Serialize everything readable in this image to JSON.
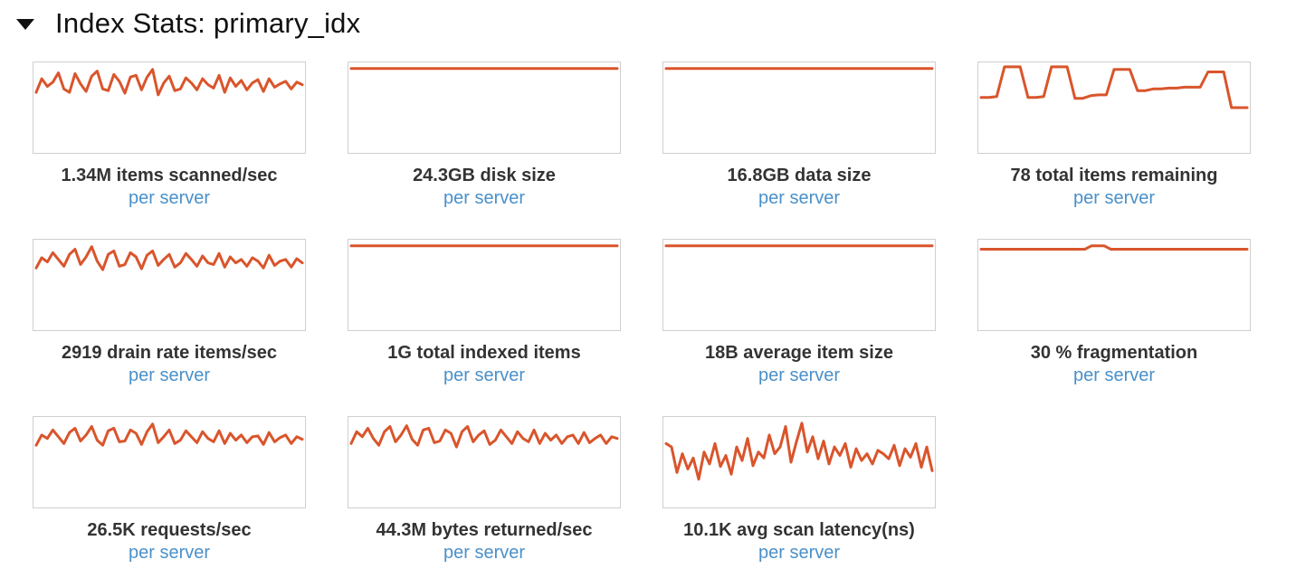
{
  "section": {
    "title": "Index Stats: primary_idx",
    "caret_icon": "caret-down-icon"
  },
  "accent_color": "#d9552c",
  "link_color": "#4a90c9",
  "tiles": [
    {
      "label": "1.34M items scanned/sec",
      "link": "per server",
      "series": [
        0.68,
        0.84,
        0.75,
        0.8,
        0.91,
        0.72,
        0.68,
        0.9,
        0.78,
        0.69,
        0.87,
        0.93,
        0.72,
        0.7,
        0.89,
        0.81,
        0.67,
        0.86,
        0.88,
        0.71,
        0.86,
        0.95,
        0.65,
        0.79,
        0.87,
        0.7,
        0.72,
        0.85,
        0.79,
        0.71,
        0.84,
        0.77,
        0.73,
        0.88,
        0.68,
        0.85,
        0.75,
        0.82,
        0.71,
        0.79,
        0.83,
        0.69,
        0.84,
        0.74,
        0.78,
        0.81,
        0.72,
        0.8,
        0.77
      ]
    },
    {
      "label": "24.3GB disk size",
      "link": "per server",
      "series": [
        0.96,
        0.96,
        0.96,
        0.96,
        0.96,
        0.96,
        0.96,
        0.96,
        0.96,
        0.96
      ]
    },
    {
      "label": "16.8GB data size",
      "link": "per server",
      "series": [
        0.96,
        0.96,
        0.96,
        0.96,
        0.96,
        0.96,
        0.96,
        0.96,
        0.96,
        0.96
      ]
    },
    {
      "label": "78 total items remaining",
      "link": "per server",
      "series": [
        0.62,
        0.62,
        0.63,
        0.98,
        0.98,
        0.98,
        0.62,
        0.62,
        0.63,
        0.98,
        0.98,
        0.98,
        0.61,
        0.61,
        0.64,
        0.65,
        0.65,
        0.95,
        0.95,
        0.95,
        0.7,
        0.7,
        0.72,
        0.72,
        0.73,
        0.73,
        0.74,
        0.74,
        0.74,
        0.92,
        0.92,
        0.92,
        0.5,
        0.5,
        0.5
      ]
    },
    {
      "label": "2919 drain rate items/sec",
      "link": "per server",
      "series": [
        0.7,
        0.82,
        0.77,
        0.88,
        0.8,
        0.72,
        0.86,
        0.92,
        0.74,
        0.83,
        0.95,
        0.78,
        0.68,
        0.86,
        0.9,
        0.72,
        0.74,
        0.88,
        0.83,
        0.69,
        0.85,
        0.9,
        0.73,
        0.8,
        0.86,
        0.71,
        0.76,
        0.87,
        0.8,
        0.72,
        0.84,
        0.76,
        0.74,
        0.87,
        0.71,
        0.83,
        0.76,
        0.8,
        0.72,
        0.82,
        0.78,
        0.7,
        0.85,
        0.73,
        0.78,
        0.8,
        0.71,
        0.81,
        0.76
      ]
    },
    {
      "label": "1G total indexed items",
      "link": "per server",
      "series": [
        0.96,
        0.96,
        0.96,
        0.96,
        0.96,
        0.96,
        0.96,
        0.96,
        0.96,
        0.96
      ]
    },
    {
      "label": "18B average item size",
      "link": "per server",
      "series": [
        0.96,
        0.96,
        0.96,
        0.96,
        0.96,
        0.96,
        0.96,
        0.96,
        0.96,
        0.96
      ]
    },
    {
      "label": "30 % fragmentation",
      "link": "per server",
      "series": [
        0.92,
        0.92,
        0.92,
        0.92,
        0.92,
        0.92,
        0.92,
        0.92,
        0.92,
        0.92,
        0.92,
        0.92,
        0.92,
        0.92,
        0.92,
        0.92,
        0.92,
        0.96,
        0.96,
        0.96,
        0.92,
        0.92,
        0.92,
        0.92,
        0.92,
        0.92,
        0.92,
        0.92,
        0.92,
        0.92,
        0.92,
        0.92,
        0.92,
        0.92,
        0.92,
        0.92,
        0.92,
        0.92,
        0.92,
        0.92,
        0.92,
        0.92
      ]
    },
    {
      "label": "26.5K requests/sec",
      "link": "per server",
      "series": [
        0.7,
        0.82,
        0.78,
        0.88,
        0.8,
        0.72,
        0.85,
        0.9,
        0.75,
        0.82,
        0.92,
        0.76,
        0.7,
        0.87,
        0.9,
        0.74,
        0.75,
        0.88,
        0.84,
        0.71,
        0.86,
        0.95,
        0.73,
        0.8,
        0.88,
        0.72,
        0.76,
        0.87,
        0.8,
        0.73,
        0.86,
        0.78,
        0.74,
        0.87,
        0.72,
        0.84,
        0.76,
        0.82,
        0.73,
        0.8,
        0.81,
        0.71,
        0.85,
        0.74,
        0.79,
        0.82,
        0.72,
        0.8,
        0.77
      ]
    },
    {
      "label": "44.3M bytes returned/sec",
      "link": "per server",
      "series": [
        0.72,
        0.86,
        0.8,
        0.9,
        0.78,
        0.7,
        0.86,
        0.92,
        0.74,
        0.82,
        0.93,
        0.77,
        0.7,
        0.88,
        0.9,
        0.73,
        0.75,
        0.88,
        0.84,
        0.68,
        0.86,
        0.92,
        0.74,
        0.82,
        0.87,
        0.71,
        0.76,
        0.88,
        0.8,
        0.72,
        0.86,
        0.78,
        0.74,
        0.88,
        0.72,
        0.84,
        0.76,
        0.82,
        0.72,
        0.8,
        0.82,
        0.72,
        0.85,
        0.73,
        0.78,
        0.82,
        0.72,
        0.8,
        0.78
      ]
    },
    {
      "label": "10.1K avg scan latency(ns)",
      "link": "per server",
      "series": [
        0.72,
        0.68,
        0.38,
        0.6,
        0.42,
        0.55,
        0.3,
        0.62,
        0.48,
        0.72,
        0.45,
        0.58,
        0.36,
        0.68,
        0.52,
        0.78,
        0.46,
        0.62,
        0.55,
        0.82,
        0.6,
        0.68,
        0.92,
        0.5,
        0.74,
        0.96,
        0.62,
        0.8,
        0.54,
        0.75,
        0.48,
        0.68,
        0.58,
        0.72,
        0.44,
        0.66,
        0.52,
        0.6,
        0.48,
        0.64,
        0.6,
        0.54,
        0.7,
        0.46,
        0.66,
        0.56,
        0.72,
        0.44,
        0.68,
        0.4
      ]
    }
  ]
}
